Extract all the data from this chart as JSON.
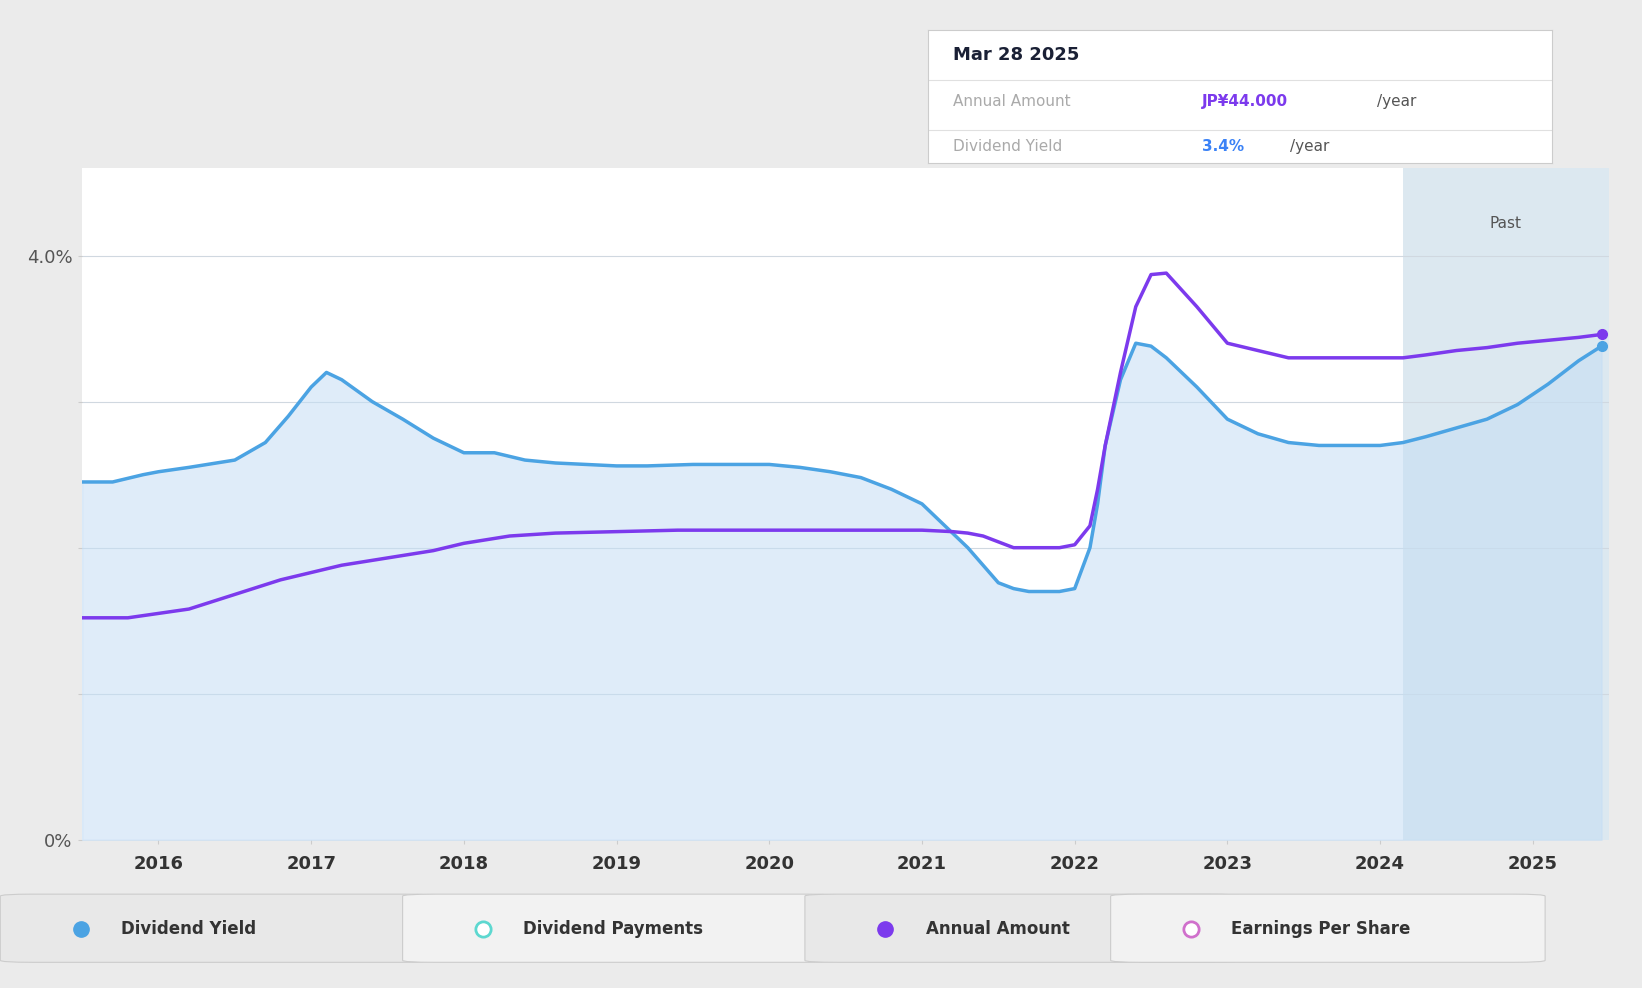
{
  "background_color": "#ebebeb",
  "plot_bg_color": "#ffffff",
  "future_bg_color": "#dce8f0",
  "ylim": [
    0.0,
    4.6
  ],
  "xmin": 2015.5,
  "xmax": 2025.5,
  "future_start": 2024.15,
  "grid_color": "#d0d8e0",
  "tooltip": {
    "date": "Mar 28 2025",
    "annual_amount_label": "Annual Amount",
    "annual_amount_value": "JP¥44.000",
    "annual_amount_unit": "/year",
    "dividend_yield_label": "Dividend Yield",
    "dividend_yield_value": "3.4%",
    "dividend_yield_unit": "/year",
    "annual_amount_color": "#7c3aed",
    "dividend_yield_color": "#3b82f6"
  },
  "dividend_yield": {
    "x": [
      2015.5,
      2015.7,
      2015.9,
      2016.0,
      2016.2,
      2016.5,
      2016.7,
      2016.85,
      2017.0,
      2017.1,
      2017.2,
      2017.4,
      2017.6,
      2017.8,
      2018.0,
      2018.2,
      2018.4,
      2018.6,
      2018.8,
      2019.0,
      2019.2,
      2019.5,
      2019.8,
      2020.0,
      2020.2,
      2020.4,
      2020.6,
      2020.8,
      2021.0,
      2021.1,
      2021.2,
      2021.3,
      2021.4,
      2021.45,
      2021.5,
      2021.55,
      2021.6,
      2021.7,
      2021.8,
      2021.9,
      2022.0,
      2022.1,
      2022.15,
      2022.2,
      2022.3,
      2022.4,
      2022.5,
      2022.6,
      2022.8,
      2023.0,
      2023.2,
      2023.4,
      2023.6,
      2023.8,
      2024.0,
      2024.15,
      2024.3,
      2024.5,
      2024.7,
      2024.9,
      2025.1,
      2025.3,
      2025.45
    ],
    "y": [
      2.45,
      2.45,
      2.5,
      2.52,
      2.55,
      2.6,
      2.72,
      2.9,
      3.1,
      3.2,
      3.15,
      3.0,
      2.88,
      2.75,
      2.65,
      2.65,
      2.6,
      2.58,
      2.57,
      2.56,
      2.56,
      2.57,
      2.57,
      2.57,
      2.55,
      2.52,
      2.48,
      2.4,
      2.3,
      2.2,
      2.1,
      2.0,
      1.88,
      1.82,
      1.76,
      1.74,
      1.72,
      1.7,
      1.7,
      1.7,
      1.72,
      2.0,
      2.3,
      2.7,
      3.15,
      3.4,
      3.38,
      3.3,
      3.1,
      2.88,
      2.78,
      2.72,
      2.7,
      2.7,
      2.7,
      2.72,
      2.76,
      2.82,
      2.88,
      2.98,
      3.12,
      3.28,
      3.38
    ],
    "color": "#4ba3e3",
    "fill_color": "#c5def5",
    "fill_alpha": 0.55,
    "linewidth": 2.5
  },
  "annual_amount": {
    "x": [
      2015.5,
      2015.6,
      2015.8,
      2016.0,
      2016.2,
      2016.5,
      2016.8,
      2017.0,
      2017.2,
      2017.5,
      2017.8,
      2018.0,
      2018.3,
      2018.6,
      2019.0,
      2019.4,
      2019.8,
      2020.0,
      2020.4,
      2020.8,
      2021.0,
      2021.2,
      2021.3,
      2021.4,
      2021.45,
      2021.5,
      2021.55,
      2021.6,
      2021.7,
      2021.8,
      2021.9,
      2022.0,
      2022.1,
      2022.15,
      2022.2,
      2022.3,
      2022.4,
      2022.5,
      2022.6,
      2022.8,
      2023.0,
      2023.2,
      2023.4,
      2023.6,
      2023.8,
      2024.0,
      2024.15,
      2024.3,
      2024.5,
      2024.7,
      2024.9,
      2025.1,
      2025.3,
      2025.45
    ],
    "y": [
      1.52,
      1.52,
      1.52,
      1.55,
      1.58,
      1.68,
      1.78,
      1.83,
      1.88,
      1.93,
      1.98,
      2.03,
      2.08,
      2.1,
      2.11,
      2.12,
      2.12,
      2.12,
      2.12,
      2.12,
      2.12,
      2.11,
      2.1,
      2.08,
      2.06,
      2.04,
      2.02,
      2.0,
      2.0,
      2.0,
      2.0,
      2.02,
      2.15,
      2.4,
      2.7,
      3.2,
      3.65,
      3.87,
      3.88,
      3.65,
      3.4,
      3.35,
      3.3,
      3.3,
      3.3,
      3.3,
      3.3,
      3.32,
      3.35,
      3.37,
      3.4,
      3.42,
      3.44,
      3.46
    ],
    "color": "#7c3aed",
    "linewidth": 2.5
  },
  "past_label": "Past",
  "legend_items": [
    {
      "label": "Dividend Yield",
      "color": "#4ba3e3",
      "marker_fill": "#4ba3e3"
    },
    {
      "label": "Dividend Payments",
      "color": "#5dd8d0",
      "marker_fill": "white"
    },
    {
      "label": "Annual Amount",
      "color": "#7c3aed",
      "marker_fill": "#7c3aed"
    },
    {
      "label": "Earnings Per Share",
      "color": "#d070cc",
      "marker_fill": "white"
    }
  ]
}
